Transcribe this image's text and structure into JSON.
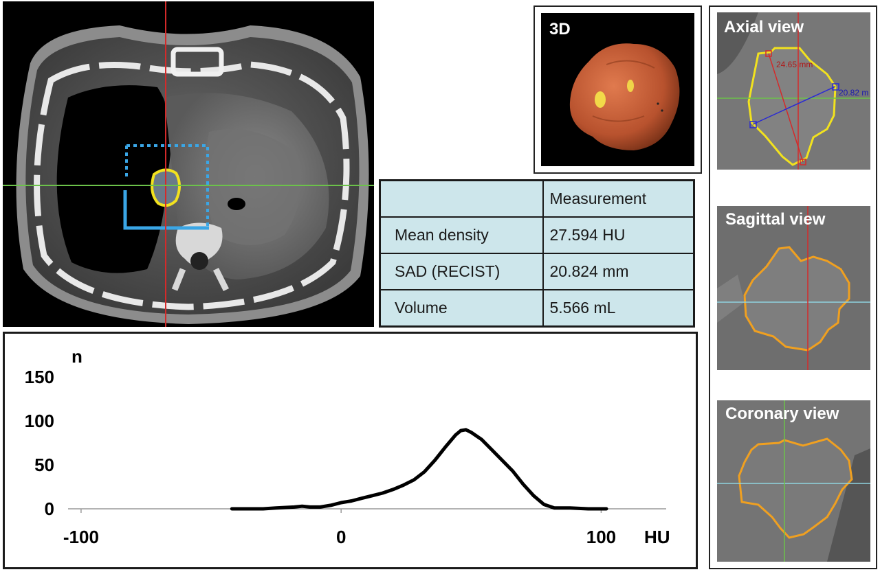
{
  "panels": {
    "three_d_label": "3D",
    "axial_label": "Axial view",
    "sagittal_label": "Sagittal view",
    "coronal_label": "Coronary view",
    "axial_long_measure": "24.65 mm",
    "axial_short_measure": "20.82 m"
  },
  "table": {
    "header": [
      "",
      "Measurement"
    ],
    "rows": [
      {
        "label": "Mean density",
        "value": "27.594 HU"
      },
      {
        "label": "SAD (RECIST)",
        "value": "20.824 mm"
      },
      {
        "label": "Volume",
        "value": "5.566 mL"
      }
    ]
  },
  "chart_data": {
    "type": "line",
    "title": "",
    "xlabel": "HU",
    "ylabel": "n",
    "xlim": [
      -105,
      125
    ],
    "ylim": [
      0,
      150
    ],
    "xticks": [
      -100,
      0,
      100
    ],
    "yticks": [
      0,
      50,
      100,
      150
    ],
    "grid": false,
    "series": [
      {
        "x": [
          -42,
          -30,
          -25,
          -18,
          -15,
          -12,
          -8,
          -4,
          0,
          4,
          8,
          12,
          16,
          20,
          24,
          28,
          32,
          36,
          40,
          44,
          46,
          48,
          50,
          54,
          58,
          62,
          66,
          70,
          74,
          78,
          82,
          88,
          95,
          102
        ],
        "y": [
          0,
          0,
          1,
          2,
          3,
          2,
          2,
          4,
          7,
          9,
          12,
          15,
          18,
          22,
          27,
          33,
          42,
          55,
          70,
          84,
          89,
          90,
          87,
          79,
          67,
          55,
          43,
          28,
          15,
          5,
          1,
          1,
          0,
          0
        ]
      }
    ]
  },
  "colors": {
    "table_fill": "#cde6eb",
    "crosshair_red": "#d42a2a",
    "crosshair_green": "#6cc24a",
    "crosshair_cyan": "#8fd4e0",
    "contour_yellow": "#f2e21e",
    "contour_orange": "#f0a020",
    "roi_blue": "#3aa6e6",
    "tumor_3d": "#c85c36"
  }
}
